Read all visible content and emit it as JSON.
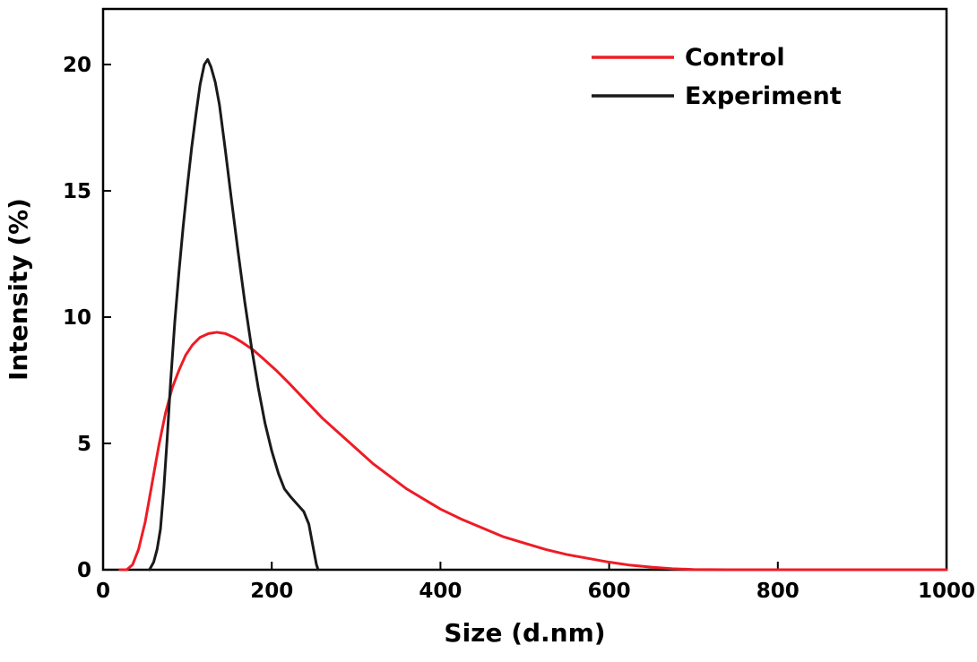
{
  "chart_data": {
    "type": "line",
    "title": "",
    "xlabel": "Size (d.nm)",
    "ylabel": "Intensity (%)",
    "xlim": [
      0,
      1000
    ],
    "ylim": [
      0,
      22.2
    ],
    "x_ticks": [
      0,
      200,
      400,
      600,
      800,
      1000
    ],
    "y_ticks": [
      0,
      5,
      10,
      15,
      20
    ],
    "grid": false,
    "legend_position": "top-right",
    "frame_color": "#000000",
    "series": [
      {
        "name": "Control",
        "color": "#ee1c25",
        "points": [
          [
            20,
            0
          ],
          [
            28,
            0
          ],
          [
            35,
            0.2
          ],
          [
            42,
            0.8
          ],
          [
            50,
            1.9
          ],
          [
            58,
            3.4
          ],
          [
            66,
            4.9
          ],
          [
            74,
            6.2
          ],
          [
            82,
            7.2
          ],
          [
            90,
            7.9
          ],
          [
            98,
            8.5
          ],
          [
            106,
            8.9
          ],
          [
            115,
            9.2
          ],
          [
            125,
            9.35
          ],
          [
            135,
            9.4
          ],
          [
            145,
            9.35
          ],
          [
            155,
            9.2
          ],
          [
            165,
            9.0
          ],
          [
            178,
            8.7
          ],
          [
            190,
            8.35
          ],
          [
            205,
            7.9
          ],
          [
            220,
            7.4
          ],
          [
            240,
            6.7
          ],
          [
            260,
            6.0
          ],
          [
            280,
            5.4
          ],
          [
            300,
            4.8
          ],
          [
            320,
            4.2
          ],
          [
            340,
            3.7
          ],
          [
            360,
            3.2
          ],
          [
            380,
            2.8
          ],
          [
            400,
            2.4
          ],
          [
            425,
            2.0
          ],
          [
            450,
            1.65
          ],
          [
            475,
            1.3
          ],
          [
            500,
            1.05
          ],
          [
            525,
            0.8
          ],
          [
            550,
            0.6
          ],
          [
            575,
            0.45
          ],
          [
            600,
            0.3
          ],
          [
            625,
            0.18
          ],
          [
            650,
            0.1
          ],
          [
            675,
            0.04
          ],
          [
            700,
            0.01
          ],
          [
            740,
            0
          ],
          [
            1000,
            0
          ]
        ]
      },
      {
        "name": "Experiment",
        "color": "#1a1a1a",
        "points": [
          [
            55,
            0
          ],
          [
            60,
            0.3
          ],
          [
            64,
            0.8
          ],
          [
            68,
            1.6
          ],
          [
            72,
            3.2
          ],
          [
            76,
            5.2
          ],
          [
            80,
            7.4
          ],
          [
            85,
            9.8
          ],
          [
            90,
            11.8
          ],
          [
            95,
            13.6
          ],
          [
            100,
            15.2
          ],
          [
            105,
            16.7
          ],
          [
            110,
            18.0
          ],
          [
            115,
            19.2
          ],
          [
            120,
            20.0
          ],
          [
            124,
            20.2
          ],
          [
            128,
            19.9
          ],
          [
            133,
            19.3
          ],
          [
            138,
            18.4
          ],
          [
            145,
            16.6
          ],
          [
            152,
            14.7
          ],
          [
            160,
            12.6
          ],
          [
            168,
            10.6
          ],
          [
            176,
            8.8
          ],
          [
            184,
            7.2
          ],
          [
            192,
            5.8
          ],
          [
            200,
            4.7
          ],
          [
            208,
            3.8
          ],
          [
            215,
            3.2
          ],
          [
            222,
            2.9
          ],
          [
            230,
            2.6
          ],
          [
            238,
            2.3
          ],
          [
            244,
            1.8
          ],
          [
            249,
            0.9
          ],
          [
            253,
            0.2
          ],
          [
            255,
            0
          ]
        ]
      }
    ]
  }
}
